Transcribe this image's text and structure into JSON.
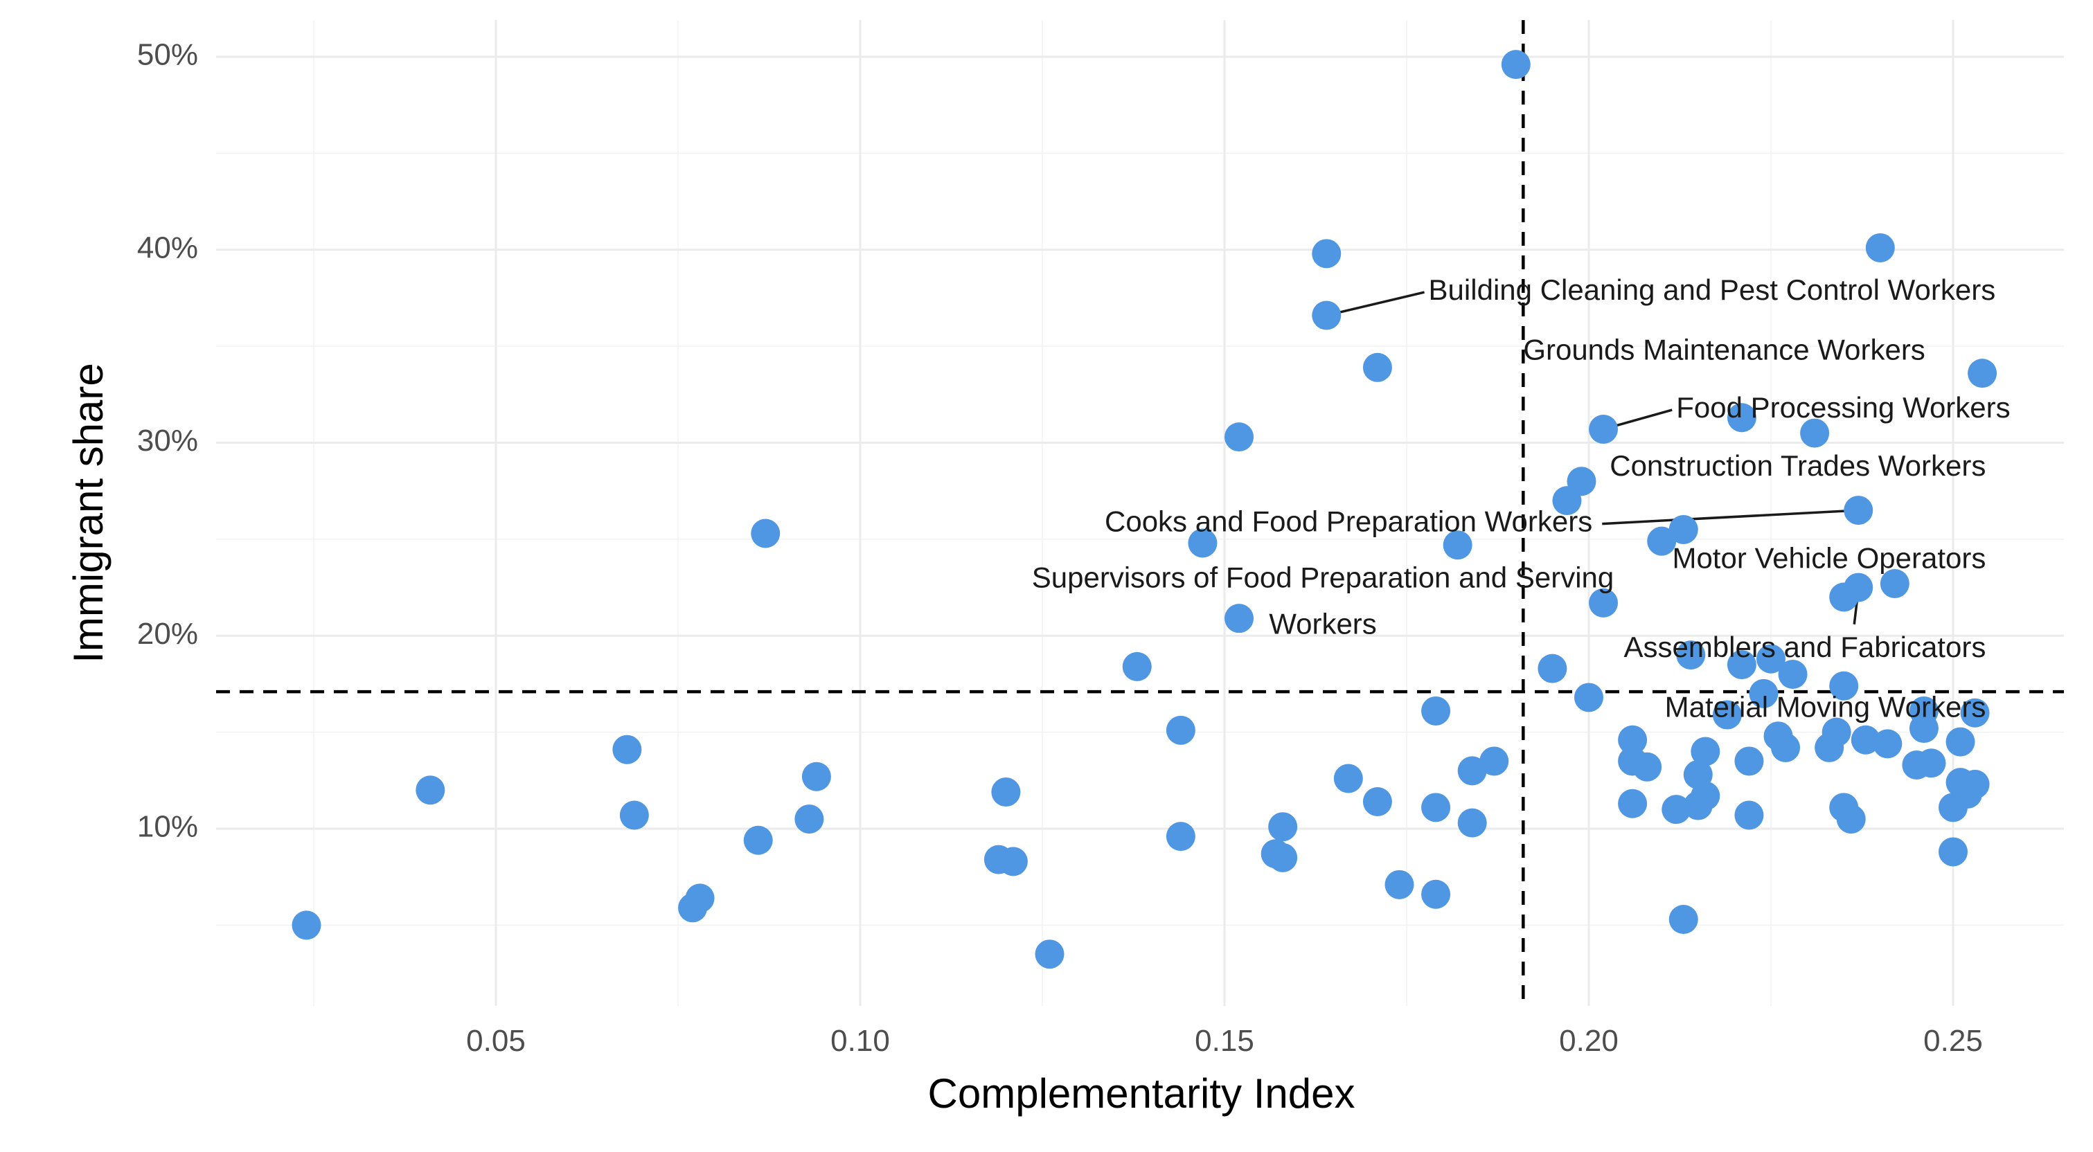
{
  "chart_data": {
    "type": "scatter",
    "title": "",
    "xlabel": "Complementarity Index",
    "ylabel": "Immigrant share",
    "xlim": [
      0.012,
      0.265
    ],
    "ylim": [
      1.5,
      52
    ],
    "x_ticks": [
      0.05,
      0.1,
      0.15,
      0.2,
      0.25
    ],
    "x_tick_labels": [
      "0.05",
      "0.10",
      "0.15",
      "0.20",
      "0.25"
    ],
    "y_ticks": [
      10,
      20,
      30,
      40,
      50
    ],
    "y_tick_labels": [
      "10%",
      "20%",
      "30%",
      "40%",
      "50%"
    ],
    "grid": true,
    "point_color": "#4f97e3",
    "reference_lines": {
      "vertical_x": 0.191,
      "horizontal_y": 17.1,
      "style": "dashed"
    },
    "points": [
      {
        "x": 0.19,
        "y": 49.6
      },
      {
        "x": 0.164,
        "y": 39.8
      },
      {
        "x": 0.24,
        "y": 40.1
      },
      {
        "x": 0.164,
        "y": 36.6
      },
      {
        "x": 0.171,
        "y": 33.9
      },
      {
        "x": 0.254,
        "y": 33.6
      },
      {
        "x": 0.152,
        "y": 30.3
      },
      {
        "x": 0.202,
        "y": 30.7
      },
      {
        "x": 0.221,
        "y": 31.3
      },
      {
        "x": 0.231,
        "y": 30.5
      },
      {
        "x": 0.199,
        "y": 28.0
      },
      {
        "x": 0.197,
        "y": 27.0
      },
      {
        "x": 0.087,
        "y": 25.3
      },
      {
        "x": 0.147,
        "y": 24.8
      },
      {
        "x": 0.182,
        "y": 24.7
      },
      {
        "x": 0.21,
        "y": 24.9
      },
      {
        "x": 0.213,
        "y": 25.5
      },
      {
        "x": 0.237,
        "y": 26.5
      },
      {
        "x": 0.202,
        "y": 21.7
      },
      {
        "x": 0.235,
        "y": 22.0
      },
      {
        "x": 0.237,
        "y": 22.5
      },
      {
        "x": 0.242,
        "y": 22.7
      },
      {
        "x": 0.152,
        "y": 20.9
      },
      {
        "x": 0.138,
        "y": 18.4
      },
      {
        "x": 0.195,
        "y": 18.3
      },
      {
        "x": 0.214,
        "y": 19.0
      },
      {
        "x": 0.221,
        "y": 18.5
      },
      {
        "x": 0.225,
        "y": 18.8
      },
      {
        "x": 0.228,
        "y": 18.0
      },
      {
        "x": 0.235,
        "y": 17.4
      },
      {
        "x": 0.2,
        "y": 16.8
      },
      {
        "x": 0.179,
        "y": 16.1
      },
      {
        "x": 0.219,
        "y": 15.9
      },
      {
        "x": 0.224,
        "y": 17.0
      },
      {
        "x": 0.246,
        "y": 16.1
      },
      {
        "x": 0.253,
        "y": 16.0
      },
      {
        "x": 0.144,
        "y": 15.1
      },
      {
        "x": 0.068,
        "y": 14.1
      },
      {
        "x": 0.206,
        "y": 14.6
      },
      {
        "x": 0.216,
        "y": 14.0
      },
      {
        "x": 0.226,
        "y": 14.8
      },
      {
        "x": 0.227,
        "y": 14.2
      },
      {
        "x": 0.233,
        "y": 14.2
      },
      {
        "x": 0.234,
        "y": 15.0
      },
      {
        "x": 0.238,
        "y": 14.6
      },
      {
        "x": 0.241,
        "y": 14.4
      },
      {
        "x": 0.246,
        "y": 15.2
      },
      {
        "x": 0.251,
        "y": 14.5
      },
      {
        "x": 0.206,
        "y": 13.5
      },
      {
        "x": 0.208,
        "y": 13.2
      },
      {
        "x": 0.215,
        "y": 12.8
      },
      {
        "x": 0.222,
        "y": 13.5
      },
      {
        "x": 0.245,
        "y": 13.3
      },
      {
        "x": 0.247,
        "y": 13.4
      },
      {
        "x": 0.251,
        "y": 12.4
      },
      {
        "x": 0.253,
        "y": 12.3
      },
      {
        "x": 0.252,
        "y": 11.8
      },
      {
        "x": 0.187,
        "y": 13.5
      },
      {
        "x": 0.184,
        "y": 13.0
      },
      {
        "x": 0.167,
        "y": 12.6
      },
      {
        "x": 0.094,
        "y": 12.7
      },
      {
        "x": 0.041,
        "y": 12.0
      },
      {
        "x": 0.12,
        "y": 11.9
      },
      {
        "x": 0.171,
        "y": 11.4
      },
      {
        "x": 0.179,
        "y": 11.1
      },
      {
        "x": 0.206,
        "y": 11.3
      },
      {
        "x": 0.212,
        "y": 11.0
      },
      {
        "x": 0.215,
        "y": 11.2
      },
      {
        "x": 0.216,
        "y": 11.7
      },
      {
        "x": 0.222,
        "y": 10.7
      },
      {
        "x": 0.235,
        "y": 11.1
      },
      {
        "x": 0.236,
        "y": 10.5
      },
      {
        "x": 0.25,
        "y": 11.1
      },
      {
        "x": 0.069,
        "y": 10.7
      },
      {
        "x": 0.093,
        "y": 10.5
      },
      {
        "x": 0.184,
        "y": 10.3
      },
      {
        "x": 0.158,
        "y": 10.1
      },
      {
        "x": 0.086,
        "y": 9.4
      },
      {
        "x": 0.144,
        "y": 9.6
      },
      {
        "x": 0.25,
        "y": 8.8
      },
      {
        "x": 0.119,
        "y": 8.4
      },
      {
        "x": 0.121,
        "y": 8.3
      },
      {
        "x": 0.157,
        "y": 8.7
      },
      {
        "x": 0.158,
        "y": 8.5
      },
      {
        "x": 0.174,
        "y": 7.1
      },
      {
        "x": 0.179,
        "y": 6.6
      },
      {
        "x": 0.078,
        "y": 6.4
      },
      {
        "x": 0.077,
        "y": 5.9
      },
      {
        "x": 0.024,
        "y": 5.0
      },
      {
        "x": 0.213,
        "y": 5.3
      },
      {
        "x": 0.126,
        "y": 3.5
      }
    ],
    "annotations": [
      {
        "label": "Building Cleaning and Pest Control Workers",
        "point": {
          "x": 0.164,
          "y": 36.6
        },
        "text_x": 0.178,
        "text_y": 37.8,
        "anchor": "start"
      },
      {
        "label": "Grounds Maintenance Workers",
        "point": null,
        "text_x": 0.191,
        "text_y": 34.7,
        "anchor": "start"
      },
      {
        "label": "Food Processing Workers",
        "point": {
          "x": 0.202,
          "y": 30.7
        },
        "text_x": 0.212,
        "text_y": 31.7,
        "anchor": "start"
      },
      {
        "label": "Construction Trades Workers",
        "point": null,
        "text_x": 0.2545,
        "text_y": 28.7,
        "anchor": "end"
      },
      {
        "label": "Cooks and Food Preparation Workers",
        "point": {
          "x": 0.237,
          "y": 26.5
        },
        "text_x": 0.2005,
        "text_y": 25.8,
        "anchor": "end"
      },
      {
        "label": "Motor Vehicle Operators",
        "point": null,
        "text_x": 0.2545,
        "text_y": 23.9,
        "anchor": "end"
      },
      {
        "label": "Supervisors of Food Preparation and Serving",
        "point": null,
        "text_x": 0.1635,
        "text_y": 22.9,
        "anchor": "middle"
      },
      {
        "label": "Workers",
        "point": null,
        "text_x": 0.1635,
        "text_y": 20.5,
        "anchor": "middle"
      },
      {
        "label": "Assemblers and Fabricators",
        "point": {
          "x": 0.237,
          "y": 22.4
        },
        "text_x": 0.2545,
        "text_y": 19.3,
        "anchor": "end"
      },
      {
        "label": "Material Moving Workers",
        "point": null,
        "text_x": 0.2545,
        "text_y": 16.2,
        "anchor": "end"
      }
    ]
  }
}
